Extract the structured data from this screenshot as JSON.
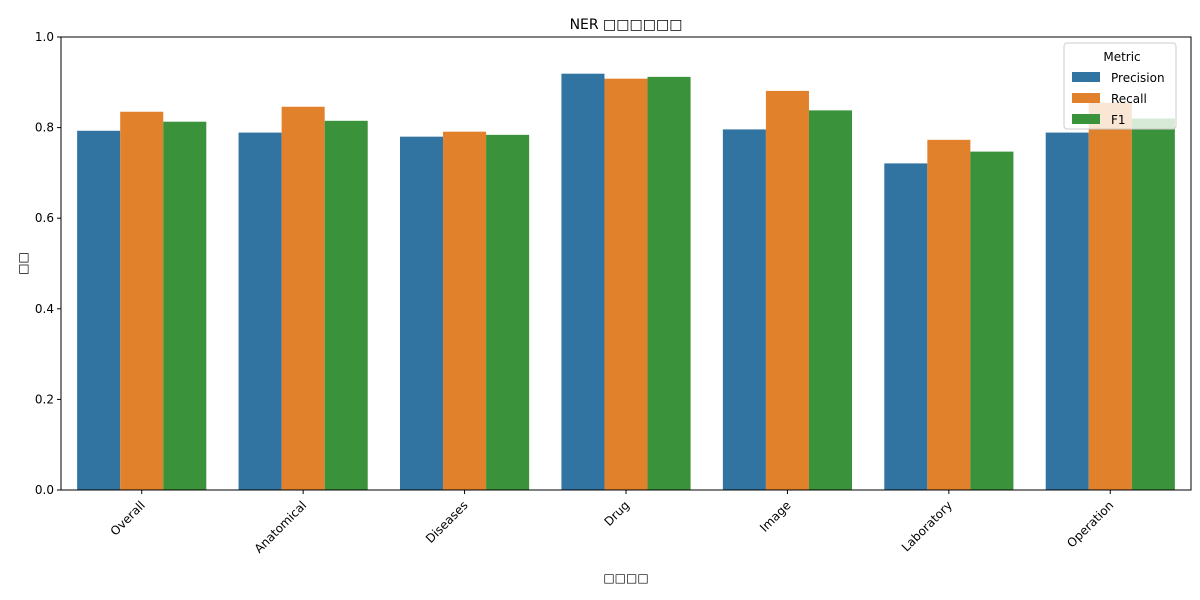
{
  "chart_data": {
    "type": "bar",
    "title": "NER □□□□□□",
    "xlabel": "□□□□",
    "ylabel": "□□",
    "categories": [
      "Overall",
      "Anatomical",
      "Diseases",
      "Drug",
      "Image",
      "Laboratory",
      "Operation"
    ],
    "series": [
      {
        "name": "Precision",
        "color": "#3274a1",
        "values": [
          0.793,
          0.789,
          0.78,
          0.919,
          0.796,
          0.721,
          0.789
        ]
      },
      {
        "name": "Recall",
        "color": "#e1812c",
        "values": [
          0.835,
          0.846,
          0.791,
          0.908,
          0.881,
          0.773,
          0.855
        ]
      },
      {
        "name": "F1",
        "color": "#3a923a",
        "values": [
          0.813,
          0.815,
          0.784,
          0.912,
          0.838,
          0.747,
          0.82
        ]
      }
    ],
    "ylim": [
      0,
      1.0
    ],
    "yticks": [
      "0.0",
      "0.2",
      "0.4",
      "0.6",
      "0.8",
      "1.0"
    ],
    "legend": {
      "title": "Metric",
      "position": "top-right"
    },
    "grid": false
  }
}
